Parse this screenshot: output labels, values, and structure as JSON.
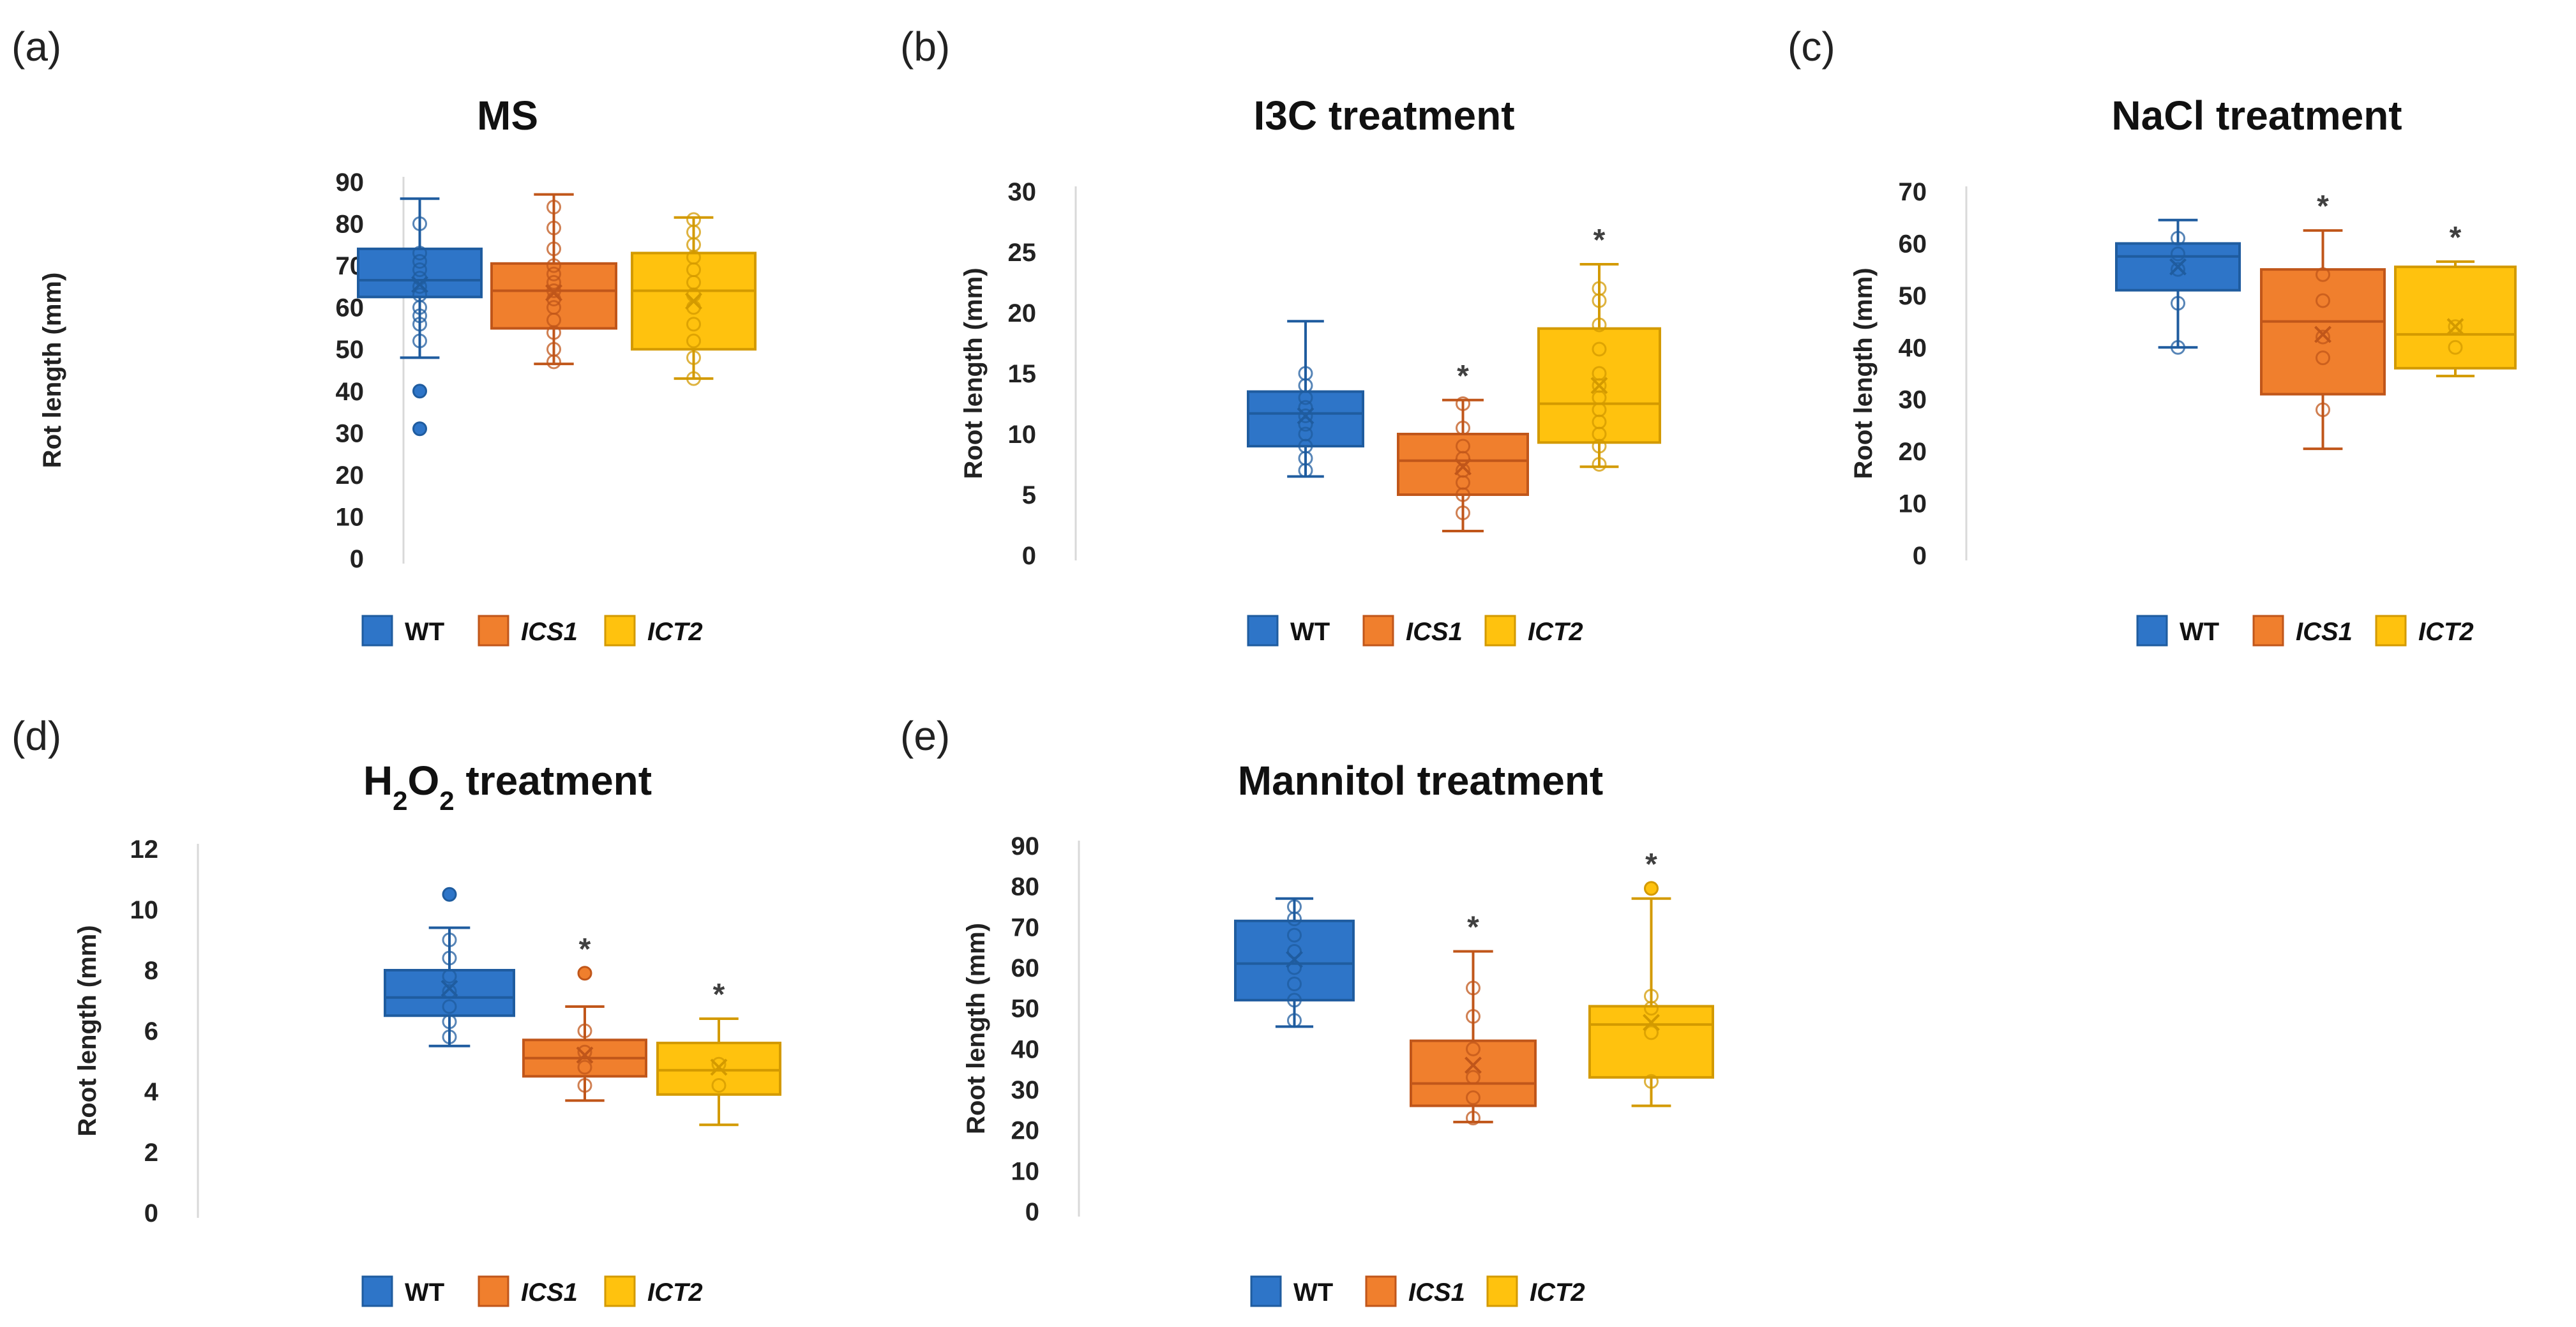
{
  "chart_data": [
    {
      "id": "a",
      "panel_label": "(a)",
      "type": "box",
      "title": "MS",
      "ylabel": "Rot length (mm)",
      "ylim": [
        0,
        90
      ],
      "yticks": [
        0,
        10,
        20,
        30,
        40,
        50,
        60,
        70,
        80,
        90
      ],
      "categories": [
        "WT",
        "ICS1",
        "ICT2"
      ],
      "legend": [
        {
          "label": "WT",
          "italic": false
        },
        {
          "label": "ICS1",
          "italic": true
        },
        {
          "label": "ICT2",
          "italic": true
        }
      ],
      "series": [
        {
          "name": "WT",
          "color": "#2E75C8",
          "edge": "#1F5C9F",
          "min": 48,
          "q1": 62.5,
          "median": 66.5,
          "q3": 74,
          "max": 86,
          "mean": 65.5,
          "sig": false,
          "points": [
            31,
            40,
            52,
            56,
            58,
            60,
            63,
            65,
            67,
            69,
            71,
            73,
            80
          ],
          "outliers": [
            31,
            40
          ]
        },
        {
          "name": "ICS1",
          "color": "#F07F2D",
          "edge": "#C0561A",
          "min": 46.5,
          "q1": 55,
          "median": 64,
          "q3": 70.5,
          "max": 87,
          "mean": 63.5,
          "sig": false,
          "points": [
            47,
            50,
            54,
            57,
            60,
            62,
            64,
            66,
            68,
            70,
            74,
            79,
            84
          ],
          "outliers": []
        },
        {
          "name": "ICT2",
          "color": "#FFC20E",
          "edge": "#D39A00",
          "min": 43,
          "q1": 50,
          "median": 64,
          "q3": 73,
          "max": 81.5,
          "mean": 61.5,
          "sig": false,
          "points": [
            43,
            48,
            52,
            56,
            60,
            63,
            66,
            69,
            72,
            75,
            78,
            81
          ],
          "outliers": []
        }
      ]
    },
    {
      "id": "b",
      "panel_label": "(b)",
      "type": "box",
      "title": "I3C treatment",
      "ylabel": "Root length (mm)",
      "ylim": [
        0,
        30
      ],
      "yticks": [
        0,
        5,
        10,
        15,
        20,
        25,
        30
      ],
      "categories": [
        "WT",
        "ICS1",
        "ICT2"
      ],
      "legend": [
        {
          "label": "WT",
          "italic": false
        },
        {
          "label": "ICS1",
          "italic": true
        },
        {
          "label": "ICT2",
          "italic": true
        }
      ],
      "series": [
        {
          "name": "WT",
          "color": "#2E75C8",
          "edge": "#1F5C9F",
          "min": 6.5,
          "q1": 9,
          "median": 11.7,
          "q3": 13.5,
          "max": 19.3,
          "mean": 11.5,
          "sig": false,
          "points": [
            7,
            8,
            9,
            10,
            10.8,
            11.5,
            12.2,
            13,
            14,
            15
          ],
          "outliers": []
        },
        {
          "name": "ICS1",
          "color": "#F07F2D",
          "edge": "#C0561A",
          "min": 2,
          "q1": 5,
          "median": 7.8,
          "q3": 10,
          "max": 12.8,
          "mean": 7.3,
          "sig": true,
          "points": [
            3.5,
            5,
            6,
            7,
            8,
            9,
            10.5,
            12.5
          ],
          "outliers": []
        },
        {
          "name": "ICT2",
          "color": "#FFC20E",
          "edge": "#D39A00",
          "min": 7.3,
          "q1": 9.3,
          "median": 12.5,
          "q3": 18.7,
          "max": 24,
          "mean": 14,
          "sig": true,
          "points": [
            7.5,
            9,
            10,
            11,
            12,
            13,
            14,
            15,
            17,
            19,
            21,
            22
          ],
          "outliers": []
        }
      ]
    },
    {
      "id": "c",
      "panel_label": "(c)",
      "type": "box",
      "title": "NaCl treatment",
      "ylabel": "Root length (mm)",
      "ylim": [
        0,
        70
      ],
      "yticks": [
        0,
        10,
        20,
        30,
        40,
        50,
        60,
        70
      ],
      "categories": [
        "WT",
        "ICS1",
        "ICT2"
      ],
      "legend": [
        {
          "label": "WT",
          "italic": false
        },
        {
          "label": "ICS1",
          "italic": true
        },
        {
          "label": "ICT2",
          "italic": true
        }
      ],
      "series": [
        {
          "name": "WT",
          "color": "#2E75C8",
          "edge": "#1F5C9F",
          "min": 40,
          "q1": 51,
          "median": 57.5,
          "q3": 60,
          "max": 64.5,
          "mean": 55.5,
          "sig": false,
          "points": [
            40,
            48.5,
            55,
            58,
            61
          ],
          "outliers": []
        },
        {
          "name": "ICS1",
          "color": "#F07F2D",
          "edge": "#C0561A",
          "min": 20.5,
          "q1": 31,
          "median": 45,
          "q3": 55,
          "max": 62.5,
          "mean": 42.5,
          "sig": true,
          "points": [
            28,
            38,
            42,
            49,
            54
          ],
          "outliers": []
        },
        {
          "name": "ICT2",
          "color": "#FFC20E",
          "edge": "#D39A00",
          "min": 34.5,
          "q1": 36,
          "median": 42.5,
          "q3": 55.5,
          "max": 56.5,
          "mean": 44,
          "sig": true,
          "points": [
            40,
            44
          ],
          "outliers": []
        }
      ]
    },
    {
      "id": "d",
      "panel_label": "(d)",
      "type": "box",
      "title_html": [
        "H",
        "2",
        "O",
        "2",
        " treatment"
      ],
      "title": "H2O2 treatment",
      "ylabel": "Root length (mm)",
      "ylim": [
        0,
        12
      ],
      "yticks": [
        0,
        2,
        4,
        6,
        8,
        10,
        12
      ],
      "categories": [
        "WT",
        "ICS1",
        "ICT2"
      ],
      "legend": [
        {
          "label": "WT",
          "italic": false
        },
        {
          "label": "ICS1",
          "italic": true
        },
        {
          "label": "ICT2",
          "italic": true
        }
      ],
      "series": [
        {
          "name": "WT",
          "color": "#2E75C8",
          "edge": "#1F5C9F",
          "min": 5.5,
          "q1": 6.5,
          "median": 7.1,
          "q3": 8,
          "max": 9.4,
          "mean": 7.4,
          "sig": false,
          "points": [
            5.8,
            6.3,
            6.8,
            7.3,
            7.8,
            8.4,
            9,
            10.5
          ],
          "outliers": [
            10.5
          ]
        },
        {
          "name": "ICS1",
          "color": "#F07F2D",
          "edge": "#C0561A",
          "min": 3.7,
          "q1": 4.5,
          "median": 5.1,
          "q3": 5.7,
          "max": 6.8,
          "mean": 5.2,
          "sig": true,
          "points": [
            4.2,
            4.8,
            5.3,
            6,
            7.9
          ],
          "outliers": [
            7.9
          ]
        },
        {
          "name": "ICT2",
          "color": "#FFC20E",
          "edge": "#D39A00",
          "min": 2.9,
          "q1": 3.9,
          "median": 4.7,
          "q3": 5.6,
          "max": 6.4,
          "mean": 4.8,
          "sig": true,
          "points": [
            4.2,
            4.9
          ],
          "outliers": []
        }
      ]
    },
    {
      "id": "e",
      "panel_label": "(e)",
      "type": "box",
      "title": "Mannitol treatment",
      "ylabel": "Root length (mm)",
      "ylim": [
        0,
        90
      ],
      "yticks": [
        0,
        10,
        20,
        30,
        40,
        50,
        60,
        70,
        80,
        90
      ],
      "categories": [
        "WT",
        "ICS1",
        "ICT2"
      ],
      "legend": [
        {
          "label": "WT",
          "italic": false
        },
        {
          "label": "ICS1",
          "italic": true
        },
        {
          "label": "ICT2",
          "italic": true
        }
      ],
      "series": [
        {
          "name": "WT",
          "color": "#2E75C8",
          "edge": "#1F5C9F",
          "min": 45.5,
          "q1": 52,
          "median": 61,
          "q3": 71.5,
          "max": 77,
          "mean": 62,
          "sig": false,
          "points": [
            47,
            52,
            56,
            60,
            64,
            68,
            72,
            75
          ],
          "outliers": []
        },
        {
          "name": "ICS1",
          "color": "#F07F2D",
          "edge": "#C0561A",
          "min": 22,
          "q1": 26,
          "median": 31.5,
          "q3": 42,
          "max": 64,
          "mean": 36,
          "sig": true,
          "points": [
            23,
            28,
            33,
            40,
            48,
            55
          ],
          "outliers": []
        },
        {
          "name": "ICT2",
          "color": "#FFC20E",
          "edge": "#D39A00",
          "min": 26,
          "q1": 33,
          "median": 46,
          "q3": 50.5,
          "max": 77,
          "mean": 46.5,
          "sig": true,
          "points": [
            32,
            44,
            50,
            53,
            79.5
          ],
          "outliers": [
            79.5
          ]
        }
      ]
    }
  ],
  "significance_marker": "*"
}
